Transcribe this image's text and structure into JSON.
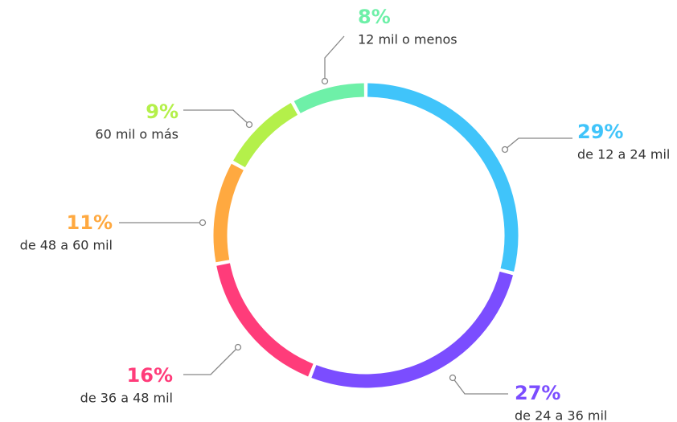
{
  "chart_data": {
    "type": "donut",
    "categories": [
      "de 12 a 24 mil",
      "de 24 a 36 mil",
      "de 36 a 48 mil",
      "de 48 a 60 mil",
      "60 mil o más",
      "12 mil o menos"
    ],
    "values": [
      29,
      27,
      16,
      11,
      9,
      8
    ],
    "value_labels": [
      "29%",
      "27%",
      "16%",
      "11%",
      "9%",
      "8%"
    ],
    "colors": [
      "#40c4fa",
      "#7b4dff",
      "#ff3c7a",
      "#ffa940",
      "#b4f04a",
      "#6ef0a8"
    ]
  }
}
